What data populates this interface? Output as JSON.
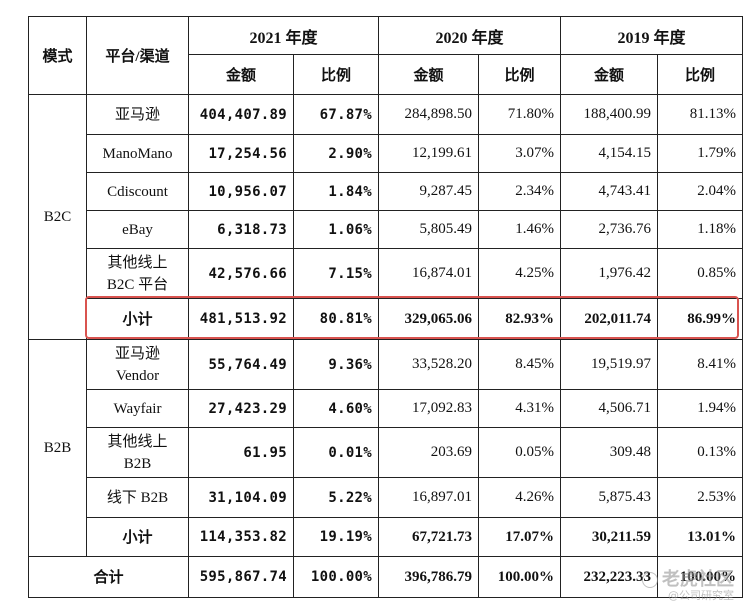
{
  "header": {
    "mode_label": "模式",
    "platform_label": "平台/渠道",
    "years": [
      "2021 年度",
      "2020 年度",
      "2019 年度"
    ],
    "amount_label": "金额",
    "ratio_label": "比例"
  },
  "b2c": {
    "mode": "B2C",
    "rows": [
      {
        "name": "亚马逊",
        "a2021": "404,407.89",
        "r2021": "67.87%",
        "a2020": "284,898.50",
        "r2020": "71.80%",
        "a2019": "188,400.99",
        "r2019": "81.13%"
      },
      {
        "name": "ManoMano",
        "a2021": "17,254.56",
        "r2021": "2.90%",
        "a2020": "12,199.61",
        "r2020": "3.07%",
        "a2019": "4,154.15",
        "r2019": "1.79%"
      },
      {
        "name": "Cdiscount",
        "a2021": "10,956.07",
        "r2021": "1.84%",
        "a2020": "9,287.45",
        "r2020": "2.34%",
        "a2019": "4,743.41",
        "r2019": "2.04%"
      },
      {
        "name": "eBay",
        "a2021": "6,318.73",
        "r2021": "1.06%",
        "a2020": "5,805.49",
        "r2020": "1.46%",
        "a2019": "2,736.76",
        "r2019": "1.18%"
      },
      {
        "name_line1": "其他线上",
        "name_line2": "B2C 平台",
        "a2021": "42,576.66",
        "r2021": "7.15%",
        "a2020": "16,874.01",
        "r2020": "4.25%",
        "a2019": "1,976.42",
        "r2019": "0.85%"
      }
    ],
    "subtotal": {
      "name": "小计",
      "a2021": "481,513.92",
      "r2021": "80.81%",
      "a2020": "329,065.06",
      "r2020": "82.93%",
      "a2019": "202,011.74",
      "r2019": "86.99%"
    }
  },
  "b2b": {
    "mode": "B2B",
    "rows": [
      {
        "name_line1": "亚马逊",
        "name_line2": "Vendor",
        "a2021": "55,764.49",
        "r2021": "9.36%",
        "a2020": "33,528.20",
        "r2020": "8.45%",
        "a2019": "19,519.97",
        "r2019": "8.41%"
      },
      {
        "name": "Wayfair",
        "a2021": "27,423.29",
        "r2021": "4.60%",
        "a2020": "17,092.83",
        "r2020": "4.31%",
        "a2019": "4,506.71",
        "r2019": "1.94%"
      },
      {
        "name_line1": "其他线上",
        "name_line2": "B2B",
        "a2021": "61.95",
        "r2021": "0.01%",
        "a2020": "203.69",
        "r2020": "0.05%",
        "a2019": "309.48",
        "r2019": "0.13%"
      },
      {
        "name": "线下 B2B",
        "a2021": "31,104.09",
        "r2021": "5.22%",
        "a2020": "16,897.01",
        "r2020": "4.26%",
        "a2019": "5,875.43",
        "r2019": "2.53%"
      }
    ],
    "subtotal": {
      "name": "小计",
      "a2021": "114,353.82",
      "r2021": "19.19%",
      "a2020": "67,721.73",
      "r2020": "17.07%",
      "a2019": "30,211.59",
      "r2019": "13.01%"
    }
  },
  "total": {
    "name": "合计",
    "a2021": "595,867.74",
    "r2021": "100.00%",
    "a2020": "396,786.79",
    "r2020": "100.00%",
    "a2019": "232,223.33",
    "r2019": "100.00%"
  },
  "watermark": {
    "main": "老虎社区",
    "sub": "@公司研究室"
  },
  "colors": {
    "highlight_border": "#d9534f"
  }
}
